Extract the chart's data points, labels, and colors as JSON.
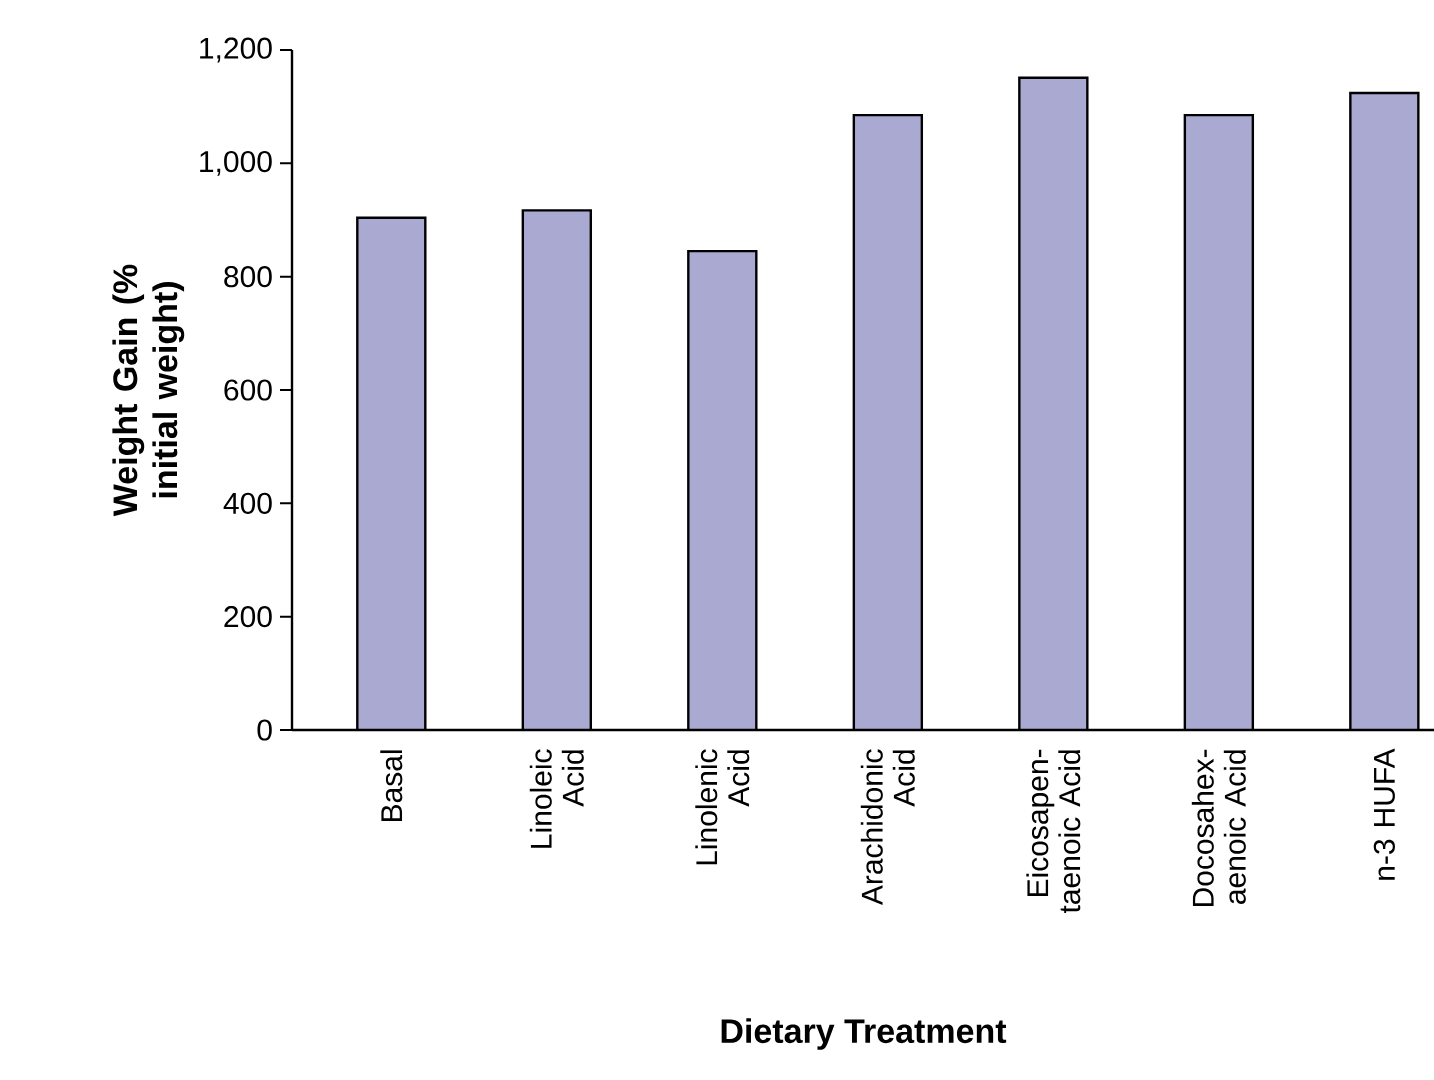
{
  "chart_data": {
    "type": "bar",
    "xlabel": "Dietary Treatment",
    "ylabel": "Weight Gain (% initial weight)",
    "categories": [
      "Basal",
      "Linoleic Acid",
      "Linolenic Acid",
      "Arachidonic Acid",
      "Eicosapen-taenoic Acid",
      "Docosahex-aenoic Acid",
      "n-3 HUFA"
    ],
    "values": [
      904,
      917,
      845,
      1085,
      1151,
      1085,
      1124
    ],
    "color": "#aaa9d2",
    "ylim": [
      0,
      1200
    ],
    "yticks": [
      0,
      200,
      400,
      600,
      800,
      {
        "value": 1000,
        "label": "1,000"
      },
      {
        "value": 1200,
        "label": "1,200"
      }
    ]
  }
}
